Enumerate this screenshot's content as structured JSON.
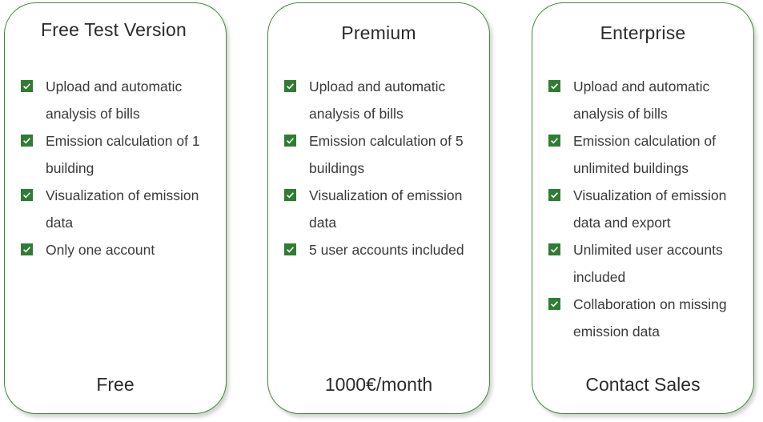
{
  "plans": [
    {
      "title": "Free Test Version",
      "features": [
        "Upload and automatic analysis of bills",
        "Emission calculation of 1 building",
        "Visualization of emission data",
        "Only one account"
      ],
      "price": "Free"
    },
    {
      "title": "Premium",
      "features": [
        "Upload and automatic analysis of bills",
        "Emission calculation of 5 buildings",
        "Visualization of emission data",
        "5 user accounts included"
      ],
      "price": "1000€/month"
    },
    {
      "title": "Enterprise",
      "features": [
        "Upload and automatic analysis of bills",
        "Emission calculation of unlimited buildings",
        "Visualization of emission data and export",
        "Unlimited user accounts included",
        "Collaboration on missing emission data"
      ],
      "price": "Contact Sales"
    }
  ],
  "colors": {
    "accent": "#2e7d32",
    "border": "#3f8a3a",
    "text": "#333333"
  },
  "icons": {
    "feature_bullet": "checkbox-checked-icon"
  }
}
